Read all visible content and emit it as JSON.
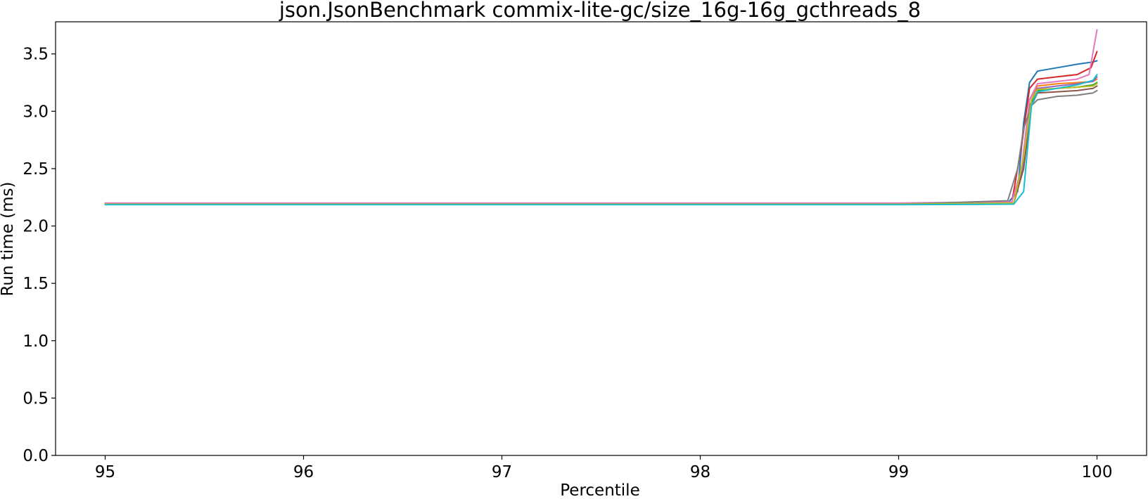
{
  "chart_data": {
    "type": "line",
    "title": "json.JsonBenchmark commix-lite-gc/size_16g-16g_gcthreads_8",
    "xlabel": "Percentile",
    "ylabel": "Run time (ms)",
    "xlim": [
      94.75,
      100.25
    ],
    "ylim": [
      0.0,
      3.78
    ],
    "xticks": [
      95,
      96,
      97,
      98,
      99,
      100
    ],
    "xtick_labels": [
      "95",
      "96",
      "97",
      "98",
      "99",
      "100"
    ],
    "yticks": [
      0.0,
      0.5,
      1.0,
      1.5,
      2.0,
      2.5,
      3.0,
      3.5
    ],
    "ytick_labels": [
      "0.0",
      "0.5",
      "1.0",
      "1.5",
      "2.0",
      "2.5",
      "3.0",
      "3.5"
    ],
    "grid": false,
    "legend": "none",
    "series": [
      {
        "color": "#1f77b4",
        "x": [
          95,
          99.0,
          99.55,
          99.6,
          99.63,
          99.66,
          99.7,
          99.8,
          99.9,
          99.98,
          100
        ],
        "y": [
          2.19,
          2.19,
          2.2,
          2.3,
          2.9,
          3.25,
          3.35,
          3.38,
          3.41,
          3.43,
          3.44
        ]
      },
      {
        "color": "#ff7f0e",
        "x": [
          95,
          99.0,
          99.58,
          99.63,
          99.66,
          99.7,
          99.8,
          99.9,
          99.98,
          100
        ],
        "y": [
          2.19,
          2.19,
          2.2,
          2.6,
          3.1,
          3.22,
          3.24,
          3.25,
          3.26,
          3.28
        ]
      },
      {
        "color": "#2ca02c",
        "x": [
          95,
          99.0,
          99.58,
          99.63,
          99.66,
          99.7,
          99.8,
          99.9,
          99.98,
          100
        ],
        "y": [
          2.19,
          2.19,
          2.2,
          2.5,
          3.05,
          3.18,
          3.2,
          3.21,
          3.23,
          3.25
        ]
      },
      {
        "color": "#d62728",
        "x": [
          95,
          99.0,
          99.57,
          99.62,
          99.66,
          99.7,
          99.8,
          99.9,
          99.97,
          100
        ],
        "y": [
          2.19,
          2.19,
          2.2,
          2.7,
          3.2,
          3.28,
          3.3,
          3.32,
          3.38,
          3.52
        ]
      },
      {
        "color": "#9467bd",
        "x": [
          95,
          99.0,
          99.58,
          99.63,
          99.67,
          99.7,
          99.8,
          99.9,
          99.98,
          100
        ],
        "y": [
          2.19,
          2.19,
          2.2,
          2.55,
          3.1,
          3.2,
          3.22,
          3.24,
          3.26,
          3.3
        ]
      },
      {
        "color": "#8c564b",
        "x": [
          95,
          99.0,
          99.58,
          99.63,
          99.67,
          99.7,
          99.8,
          99.9,
          99.98,
          100
        ],
        "y": [
          2.19,
          2.19,
          2.2,
          2.5,
          3.05,
          3.16,
          3.17,
          3.18,
          3.2,
          3.22
        ]
      },
      {
        "color": "#e377c2",
        "x": [
          95,
          99.0,
          99.57,
          99.62,
          99.66,
          99.7,
          99.8,
          99.9,
          99.96,
          100
        ],
        "y": [
          2.2,
          2.2,
          2.21,
          2.5,
          3.1,
          3.24,
          3.26,
          3.28,
          3.32,
          3.71
        ]
      },
      {
        "color": "#7f7f7f",
        "x": [
          95,
          99.0,
          99.55,
          99.6,
          99.63,
          99.67,
          99.7,
          99.8,
          99.9,
          99.98,
          100
        ],
        "y": [
          2.19,
          2.19,
          2.22,
          2.5,
          2.85,
          3.05,
          3.1,
          3.13,
          3.14,
          3.16,
          3.18
        ]
      },
      {
        "color": "#bcbd22",
        "x": [
          95,
          99.0,
          99.58,
          99.63,
          99.67,
          99.7,
          99.8,
          99.9,
          99.98,
          100
        ],
        "y": [
          2.19,
          2.19,
          2.2,
          2.6,
          3.1,
          3.19,
          3.2,
          3.21,
          3.22,
          3.24
        ]
      },
      {
        "color": "#17becf",
        "x": [
          95,
          99.0,
          99.58,
          99.63,
          99.67,
          99.7,
          99.8,
          99.9,
          99.98,
          100
        ],
        "y": [
          2.185,
          2.185,
          2.19,
          2.3,
          3.05,
          3.17,
          3.2,
          3.23,
          3.27,
          3.32
        ]
      }
    ]
  }
}
